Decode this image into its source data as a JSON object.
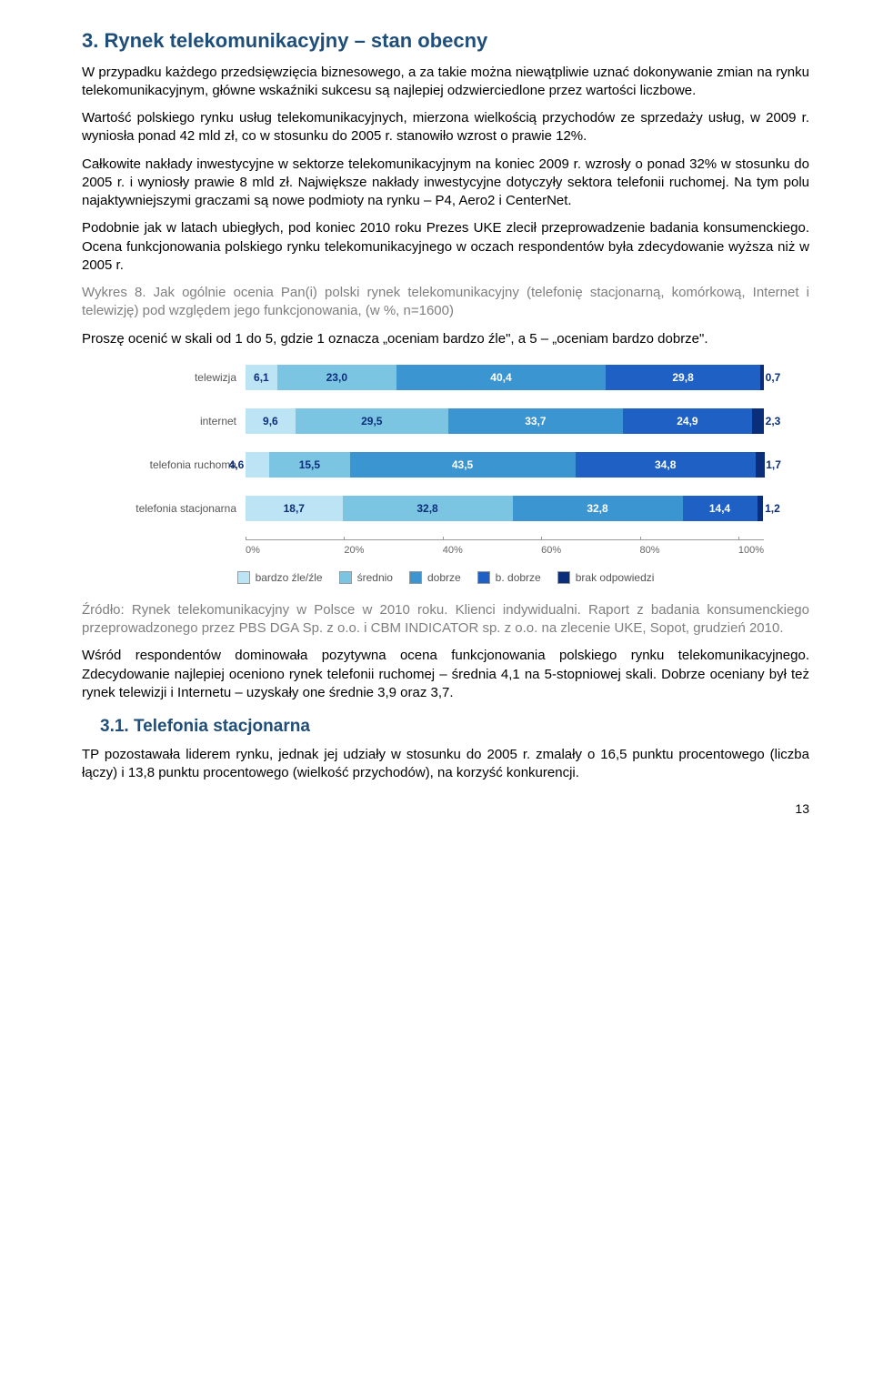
{
  "section": {
    "heading": "3.  Rynek telekomunikacyjny – stan obecny",
    "p1": "W przypadku każdego przedsięwzięcia biznesowego, a za takie można niewątpliwie uznać dokonywanie zmian na rynku telekomunikacyjnym, główne wskaźniki sukcesu są najlepiej odzwierciedlone przez wartości liczbowe.",
    "p2": "Wartość polskiego rynku usług telekomunikacyjnych, mierzona wielkością przychodów ze sprzedaży usług, w 2009 r. wyniosła ponad 42 mld zł, co w stosunku do 2005 r. stanowiło wzrost o prawie 12%.",
    "p3": "Całkowite nakłady inwestycyjne w sektorze telekomunikacyjnym na koniec 2009 r. wzrosły o ponad 32% w stosunku do 2005 r. i wyniosły prawie 8 mld zł. Największe nakłady inwestycyjne dotyczyły sektora telefonii ruchomej. Na tym polu najaktywniejszymi graczami są nowe podmioty na rynku – P4, Aero2 i CenterNet.",
    "p4": "Podobnie jak w latach ubiegłych, pod koniec 2010 roku Prezes UKE zlecił przeprowadzenie badania konsumenckiego. Ocena funkcjonowania polskiego rynku telekomunikacyjnego w oczach respondentów była zdecydowanie wyższa niż w 2005 r.",
    "wykres_caption": "Wykres 8. Jak ogólnie ocenia Pan(i) polski rynek telekomunikacyjny (telefonię stacjonarną, komórkową, Internet i telewizję) pod względem jego funkcjonowania, (w %, n=1600)",
    "prompt": "Proszę ocenić w skali od 1 do 5, gdzie 1 oznacza „oceniam bardzo źle\", a 5 – „oceniam bardzo dobrze\".",
    "source": "Źródło: Rynek telekomunikacyjny w Polsce w 2010 roku. Klienci indywidualni. Raport z badania konsumenckiego przeprowadzonego przez PBS DGA Sp. z o.o. i CBM INDICATOR sp. z o.o. na zlecenie UKE, Sopot, grudzień 2010.",
    "p5": "Wśród respondentów dominowała pozytywna ocena funkcjonowania polskiego rynku telekomunikacyjnego. Zdecydowanie najlepiej oceniono rynek telefonii ruchomej – średnia 4,1 na 5-stopniowej skali. Dobrze oceniany był też rynek telewizji i Internetu – uzyskały one średnie 3,9 oraz 3,7.",
    "sub_heading": "3.1. Telefonia stacjonarna",
    "p6": "TP pozostawała liderem rynku, jednak jej udziały w stosunku do 2005 r. zmalały o 16,5 punktu procentowego (liczba łączy) i 13,8 punktu procentowego (wielkość przychodów), na korzyść konkurencji."
  },
  "chart": {
    "type": "stacked-bar-horizontal",
    "xlim": [
      0,
      100
    ],
    "xtick_step": 20,
    "xticks": [
      "0%",
      "20%",
      "40%",
      "60%",
      "80%",
      "100%"
    ],
    "series": [
      "bardzo źle/źle",
      "średnio",
      "dobrze",
      "b. dobrze",
      "brak odpowiedzi"
    ],
    "colors": [
      "#bde4f4",
      "#7bc5e3",
      "#3b95d1",
      "#1f60c4",
      "#0b2e7a"
    ],
    "label_color_dark": "#0b2e7a",
    "label_color_light": "#ffffff",
    "rows": [
      {
        "label": "telewizja",
        "values": [
          6.1,
          23.0,
          40.4,
          29.8,
          0.7
        ],
        "outside_first": false
      },
      {
        "label": "internet",
        "values": [
          9.6,
          29.5,
          33.7,
          24.9,
          2.3
        ],
        "outside_first": false
      },
      {
        "label": "telefonia ruchoma",
        "values": [
          4.6,
          15.5,
          43.5,
          34.8,
          1.7
        ],
        "outside_first": true
      },
      {
        "label": "telefonia stacjonarna",
        "values": [
          18.7,
          32.8,
          32.8,
          14.4,
          1.2
        ],
        "outside_first": false
      }
    ],
    "legend_swatch_border": "#999999",
    "background": "#ffffff"
  },
  "page_number": "13"
}
